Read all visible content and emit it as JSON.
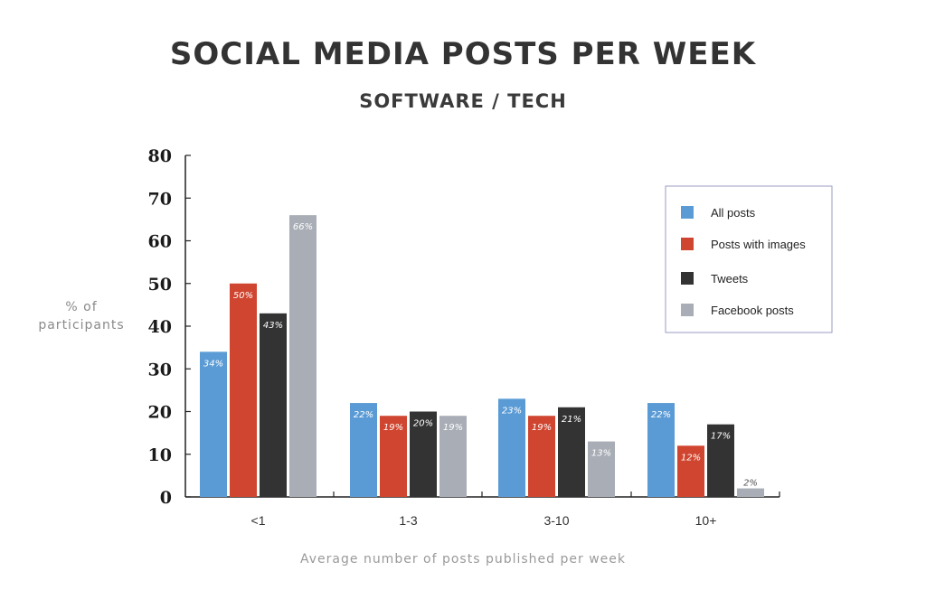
{
  "chart_data": {
    "type": "bar",
    "title": "SOCIAL MEDIA POSTS PER WEEK",
    "subtitle": "SOFTWARE / TECH",
    "ylabel": "% of participants",
    "xlabel": "Average number of posts published per week",
    "ylim": [
      0,
      80
    ],
    "yticks": [
      0,
      10,
      20,
      30,
      40,
      50,
      60,
      70,
      80
    ],
    "categories": [
      "<1",
      "1-3",
      "3-10",
      "10+"
    ],
    "series": [
      {
        "name": "All posts",
        "color": "#5b9bd5",
        "values": [
          34,
          22,
          23,
          22
        ],
        "labels": [
          "34%",
          "22%",
          "23%",
          "22%"
        ]
      },
      {
        "name": "Posts with images",
        "color": "#d0452f",
        "values": [
          50,
          19,
          19,
          12
        ],
        "labels": [
          "50%",
          "19%",
          "19%",
          "12%"
        ]
      },
      {
        "name": "Tweets",
        "color": "#333333",
        "values": [
          43,
          20,
          21,
          17
        ],
        "labels": [
          "43%",
          "20%",
          "21%",
          "17%"
        ]
      },
      {
        "name": "Facebook posts",
        "color": "#a8adb6",
        "values": [
          66,
          19,
          13,
          2
        ],
        "labels": [
          "66%",
          "19%",
          "13%",
          "2%"
        ]
      }
    ],
    "legend_position": "top-right",
    "grid": false
  }
}
